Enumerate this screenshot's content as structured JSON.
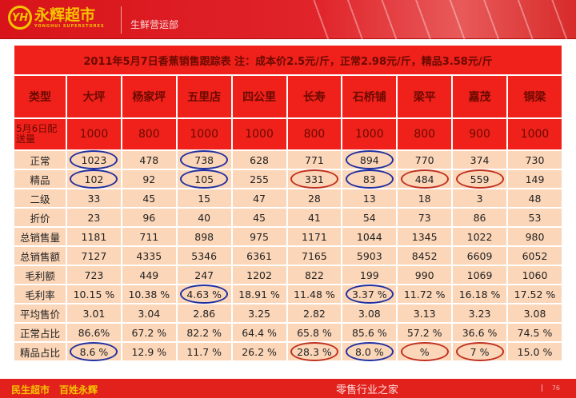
{
  "header": {
    "logo_mark": "YH",
    "brand": "永辉超市",
    "brand_en": "YONGHUI SUPERSTORES",
    "department": "生鲜营运部"
  },
  "table": {
    "title": "2011年5月7日香蕉销售跟踪表  注：成本价2.5元/斤，正常2.98元/斤，精品3.58元/斤",
    "corner": "类型",
    "stores": [
      "大坪",
      "杨家坪",
      "五里店",
      "四公里",
      "长寿",
      "石桥铺",
      "梁平",
      "嘉茂",
      "铜梁"
    ],
    "delivery": {
      "label": "5月6日配送量",
      "values": [
        "1000",
        "800",
        "1000",
        "1000",
        "800",
        "1000",
        "800",
        "900",
        "1000"
      ]
    },
    "rows": [
      {
        "label": "正常",
        "values": [
          "1023",
          "478",
          "738",
          "628",
          "771",
          "894",
          "770",
          "374",
          "730"
        ]
      },
      {
        "label": "精品",
        "values": [
          "102",
          "92",
          "105",
          "255",
          "331",
          "83",
          "484",
          "559",
          "149"
        ]
      },
      {
        "label": "二级",
        "values": [
          "33",
          "45",
          "15",
          "47",
          "28",
          "13",
          "18",
          "3",
          "48"
        ]
      },
      {
        "label": "折价",
        "values": [
          "23",
          "96",
          "40",
          "45",
          "41",
          "54",
          "73",
          "86",
          "53"
        ]
      },
      {
        "label": "总销售量",
        "values": [
          "1181",
          "711",
          "898",
          "975",
          "1171",
          "1044",
          "1345",
          "1022",
          "980"
        ]
      },
      {
        "label": "总销售额",
        "values": [
          "7127",
          "4335",
          "5346",
          "6361",
          "7165",
          "5903",
          "8452",
          "6609",
          "6052"
        ]
      },
      {
        "label": "毛利额",
        "values": [
          "723",
          "449",
          "247",
          "1202",
          "822",
          "199",
          "990",
          "1069",
          "1060"
        ]
      },
      {
        "label": "毛利率",
        "values": [
          "10.15 %",
          "10.38 %",
          "4.63 %",
          "18.91 %",
          "11.48 %",
          "3.37 %",
          "11.72 %",
          "16.18 %",
          "17.52 %"
        ]
      },
      {
        "label": "平均售价",
        "values": [
          "3.01",
          "3.04",
          "2.86",
          "3.25",
          "2.82",
          "3.08",
          "3.13",
          "3.23",
          "3.08"
        ]
      },
      {
        "label": "正常占比",
        "values": [
          "86.6%",
          "67.2 %",
          "82.2 %",
          "64.4 %",
          "65.8 %",
          "85.6 %",
          "57.2 %",
          "36.6 %",
          "74.5 %"
        ]
      },
      {
        "label": "精品占比",
        "values": [
          "8.6 %",
          "12.9 %",
          "11.7 %",
          "26.2 %",
          "28.3 %",
          "8.0 %",
          "%",
          "7 %",
          "15.0 %"
        ]
      }
    ],
    "highlights": [
      {
        "row": 0,
        "col": 0,
        "color": "blue"
      },
      {
        "row": 0,
        "col": 2,
        "color": "blue"
      },
      {
        "row": 0,
        "col": 5,
        "color": "blue"
      },
      {
        "row": 1,
        "col": 0,
        "color": "blue"
      },
      {
        "row": 1,
        "col": 2,
        "color": "blue"
      },
      {
        "row": 1,
        "col": 5,
        "color": "blue"
      },
      {
        "row": 1,
        "col": 4,
        "color": "red"
      },
      {
        "row": 1,
        "col": 6,
        "color": "red"
      },
      {
        "row": 1,
        "col": 7,
        "color": "red"
      },
      {
        "row": 7,
        "col": 2,
        "color": "blue"
      },
      {
        "row": 7,
        "col": 5,
        "color": "blue"
      },
      {
        "row": 10,
        "col": 0,
        "color": "blue"
      },
      {
        "row": 10,
        "col": 5,
        "color": "blue"
      },
      {
        "row": 10,
        "col": 4,
        "color": "red"
      },
      {
        "row": 10,
        "col": 6,
        "color": "red"
      },
      {
        "row": 10,
        "col": 7,
        "color": "red"
      }
    ]
  },
  "watermark": "零售行业之家",
  "footer": {
    "slogan": "民生超市　百姓永辉",
    "page": "76"
  },
  "colors": {
    "header_red": "#f0201a",
    "cell": "#fcd6b8",
    "blue_mark": "#1f2fa0",
    "red_mark": "#c0301e",
    "gold": "#f5c400"
  }
}
